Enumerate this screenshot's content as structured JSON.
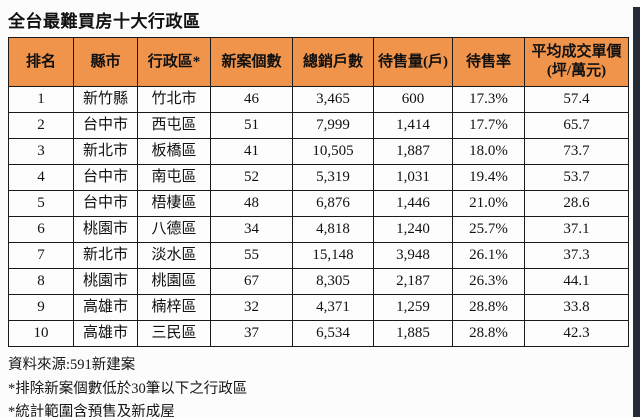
{
  "page": {
    "title": "全台最難買房十大行政區",
    "accent_color": "#F0944C",
    "border_color": "#1a1a1a",
    "side_band_color": "#232B36"
  },
  "table": {
    "columns": [
      "排名",
      "縣市",
      "行政區*",
      "新案個數",
      "總銷戶數",
      "待售量(戶)",
      "待售率",
      "平均成交單價\n(坪/萬元)"
    ],
    "rows": [
      [
        "1",
        "新竹縣",
        "竹北市",
        "46",
        "3,465",
        "600",
        "17.3%",
        "57.4"
      ],
      [
        "2",
        "台中市",
        "西屯區",
        "51",
        "7,999",
        "1,414",
        "17.7%",
        "65.7"
      ],
      [
        "3",
        "新北市",
        "板橋區",
        "41",
        "10,505",
        "1,887",
        "18.0%",
        "73.7"
      ],
      [
        "4",
        "台中市",
        "南屯區",
        "52",
        "5,319",
        "1,031",
        "19.4%",
        "53.7"
      ],
      [
        "5",
        "台中市",
        "梧棲區",
        "48",
        "6,876",
        "1,446",
        "21.0%",
        "28.6"
      ],
      [
        "6",
        "桃園市",
        "八德區",
        "34",
        "4,818",
        "1,240",
        "25.7%",
        "37.1"
      ],
      [
        "7",
        "新北市",
        "淡水區",
        "55",
        "15,148",
        "3,948",
        "26.1%",
        "37.3"
      ],
      [
        "8",
        "桃園市",
        "桃園區",
        "67",
        "8,305",
        "2,187",
        "26.3%",
        "44.1"
      ],
      [
        "9",
        "高雄市",
        "楠梓區",
        "32",
        "4,371",
        "1,259",
        "28.8%",
        "33.8"
      ],
      [
        "10",
        "高雄市",
        "三民區",
        "37",
        "6,534",
        "1,885",
        "28.8%",
        "42.3"
      ]
    ]
  },
  "footnotes": {
    "source": "資料來源:591新建案",
    "note1": "*排除新案個數低於30筆以下之行政區",
    "note2": "*統計範圍含預售及新成屋"
  },
  "chart_data": {
    "type": "table",
    "title": "全台最難買房十大行政區",
    "columns": [
      "排名",
      "縣市",
      "行政區*",
      "新案個數",
      "總銷戶數",
      "待售量(戶)",
      "待售率",
      "平均成交單價(坪/萬元)"
    ],
    "rows": [
      [
        1,
        "新竹縣",
        "竹北市",
        46,
        3465,
        600,
        "17.3%",
        57.4
      ],
      [
        2,
        "台中市",
        "西屯區",
        51,
        7999,
        1414,
        "17.7%",
        65.7
      ],
      [
        3,
        "新北市",
        "板橋區",
        41,
        10505,
        1887,
        "18.0%",
        73.7
      ],
      [
        4,
        "台中市",
        "南屯區",
        52,
        5319,
        1031,
        "19.4%",
        53.7
      ],
      [
        5,
        "台中市",
        "梧棲區",
        48,
        6876,
        1446,
        "21.0%",
        28.6
      ],
      [
        6,
        "桃園市",
        "八德區",
        34,
        4818,
        1240,
        "25.7%",
        37.1
      ],
      [
        7,
        "新北市",
        "淡水區",
        55,
        15148,
        3948,
        "26.1%",
        37.3
      ],
      [
        8,
        "桃園市",
        "桃園區",
        67,
        8305,
        2187,
        "26.3%",
        44.1
      ],
      [
        9,
        "高雄市",
        "楠梓區",
        32,
        4371,
        1259,
        "28.8%",
        33.8
      ],
      [
        10,
        "高雄市",
        "三民區",
        37,
        6534,
        1885,
        "28.8%",
        42.3
      ]
    ],
    "source": "資料來源:591新建案",
    "notes": [
      "*排除新案個數低於30筆以下之行政區",
      "*統計範圍含預售及新成屋"
    ],
    "header_bg": "#F0944C"
  }
}
